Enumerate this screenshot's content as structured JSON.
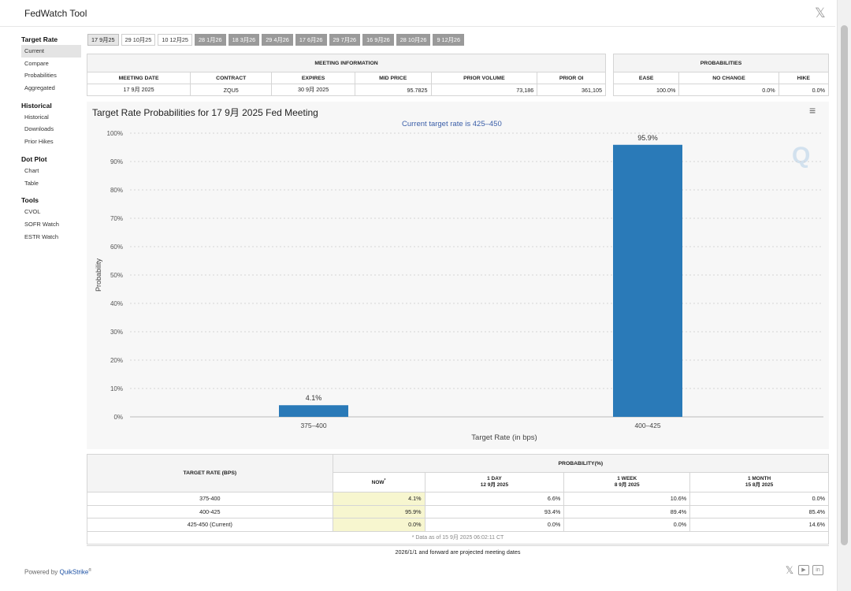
{
  "app": {
    "title": "FedWatch Tool",
    "close_glyph": "𝕏"
  },
  "sidebar": [
    {
      "heading": "Target Rate",
      "items": [
        "Current",
        "Compare",
        "Probabilities",
        "Aggregated"
      ],
      "active": "Current"
    },
    {
      "heading": "Historical",
      "items": [
        "Historical",
        "Downloads",
        "Prior Hikes"
      ]
    },
    {
      "heading": "Dot Plot",
      "items": [
        "Chart",
        "Table"
      ]
    },
    {
      "heading": "Tools",
      "items": [
        "CVOL",
        "SOFR Watch",
        "ESTR Watch"
      ]
    }
  ],
  "tabs": [
    {
      "label": "17 9月25",
      "style": "selected"
    },
    {
      "label": "29 10月25",
      "style": "white"
    },
    {
      "label": "10 12月25",
      "style": "white"
    },
    {
      "label": "28 1月26",
      "style": "gray"
    },
    {
      "label": "18 3月26",
      "style": "gray"
    },
    {
      "label": "29 4月26",
      "style": "gray"
    },
    {
      "label": "17 6月26",
      "style": "gray"
    },
    {
      "label": "29 7月26",
      "style": "gray"
    },
    {
      "label": "16 9月26",
      "style": "gray"
    },
    {
      "label": "28 10月26",
      "style": "gray"
    },
    {
      "label": "9 12月26",
      "style": "gray"
    }
  ],
  "meeting_info": {
    "heading": "MEETING INFORMATION",
    "columns": [
      "MEETING DATE",
      "CONTRACT",
      "EXPIRES",
      "MID PRICE",
      "PRIOR VOLUME",
      "PRIOR OI"
    ],
    "row": [
      "17 9月 2025",
      "ZQU5",
      "30 9月 2025",
      "95.7825",
      "73,186",
      "361,105"
    ]
  },
  "probabilities": {
    "heading": "PROBABILITIES",
    "columns": [
      "EASE",
      "NO CHANGE",
      "HIKE"
    ],
    "row": [
      "100.0%",
      "0.0%",
      "0.0%"
    ]
  },
  "chart_data": {
    "type": "bar",
    "title": "Target Rate Probabilities for 17 9月 2025 Fed Meeting",
    "subtitle": "Current target rate is 425–450",
    "xlabel": "Target Rate (in bps)",
    "ylabel": "Probability",
    "categories": [
      "375–400",
      "400–425"
    ],
    "values": [
      4.1,
      95.9
    ],
    "data_labels": [
      "4.1%",
      "95.9%"
    ],
    "ylim": [
      0,
      100
    ],
    "yticks": [
      "0%",
      "10%",
      "20%",
      "30%",
      "40%",
      "50%",
      "60%",
      "70%",
      "80%",
      "90%",
      "100%"
    ],
    "bar_color": "#2a7ab8",
    "grid": true,
    "watermark": "Q"
  },
  "chart_menu_icon": "hamburger-icon",
  "bottom_table": {
    "target_heading": "TARGET RATE (BPS)",
    "prob_heading": "PROBABILITY(%)",
    "subcolumns": [
      {
        "line1": "NOW",
        "line2": "",
        "sup": "*"
      },
      {
        "line1": "1 DAY",
        "line2": "12 9月 2025"
      },
      {
        "line1": "1 WEEK",
        "line2": "8 9月 2025"
      },
      {
        "line1": "1 MONTH",
        "line2": "15 8月 2025"
      }
    ],
    "rows": [
      {
        "rate": "375-400",
        "values": [
          "4.1%",
          "6.6%",
          "10.6%",
          "0.0%"
        ]
      },
      {
        "rate": "400-425",
        "values": [
          "95.9%",
          "93.4%",
          "89.4%",
          "85.4%"
        ]
      },
      {
        "rate": "425-450 (Current)",
        "values": [
          "0.0%",
          "0.0%",
          "0.0%",
          "14.6%"
        ]
      }
    ],
    "note": "* Data as of 15 9月 2025 06:02:11 CT"
  },
  "footer": {
    "projected_note": "2026/1/1 and forward are projected meeting dates",
    "powered_prefix": "Powered by ",
    "powered_brand": "QuikStrike",
    "powered_mark": "®",
    "icons": [
      "x-icon",
      "youtube-icon",
      "linkedin-icon"
    ]
  }
}
